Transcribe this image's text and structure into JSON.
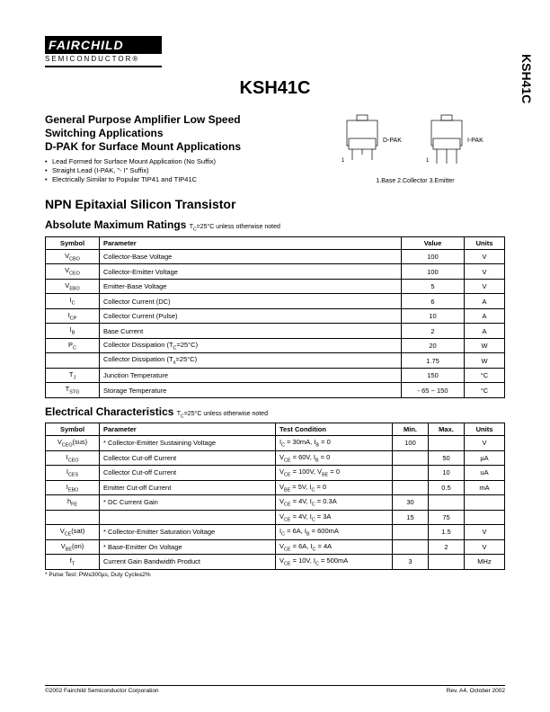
{
  "side_label": "KSH41C",
  "logo": {
    "top": "FAIRCHILD",
    "bottom": "SEMICONDUCTOR®"
  },
  "part_title": "KSH41C",
  "headline": [
    "General Purpose Amplifier Low Speed",
    "Switching Applications",
    "D-PAK for Surface Mount Applications"
  ],
  "bullets": [
    "Lead Formed for Surface Mount Application (No Suffix)",
    "Straight Lead (I-PAK, \"- I\" Suffix)",
    "Electrically Similar to Popular TIP41 and TIP41C"
  ],
  "pkg": {
    "left": "D-PAK",
    "right": "I-PAK",
    "pins": "1.Base    2.Collector    3.Emitter"
  },
  "npn_title": "NPN Epitaxial Silicon Transistor",
  "amr": {
    "title": "Absolute Maximum Ratings",
    "note": "T_C=25°C unless otherwise noted",
    "headers": [
      "Symbol",
      "Parameter",
      "Value",
      "Units"
    ],
    "rows": [
      [
        "V<sub>CBO</sub>",
        "Collector-Base Voltage",
        "100",
        "V"
      ],
      [
        "V<sub>CEO</sub>",
        "Collector-Emitter Voltage",
        "100",
        "V"
      ],
      [
        "V<sub>EBO</sub>",
        "Emitter-Base Voltage",
        "5",
        "V"
      ],
      [
        "I<sub>C</sub>",
        "Collector Current (DC)",
        "6",
        "A"
      ],
      [
        "I<sub>CP</sub>",
        "Collector Current (Pulse)",
        "10",
        "A"
      ],
      [
        "I<sub>B</sub>",
        "Base Current",
        "2",
        "A"
      ],
      [
        "P<sub>C</sub>",
        "Collector Dissipation (T<sub>C</sub>=25°C)",
        "20",
        "W"
      ],
      [
        "",
        "Collector Dissipation (T<sub>a</sub>=25°C)",
        "1.75",
        "W"
      ],
      [
        "T<sub>J</sub>",
        "Junction Temperature",
        "150",
        "°C"
      ],
      [
        "T<sub>STG</sub>",
        "Storage Temperature",
        "- 65 ~ 150",
        "°C"
      ]
    ]
  },
  "elec": {
    "title": "Electrical Characteristics",
    "note": "T_C=25°C unless otherwise noted",
    "headers": [
      "Symbol",
      "Parameter",
      "Test Condition",
      "Min.",
      "Max.",
      "Units"
    ],
    "rows": [
      [
        "V<sub>CEO</sub>(sus)",
        "* Collector-Emitter Sustaining Voltage",
        "I<sub>C</sub> = 30mA, I<sub>B</sub> = 0",
        "100",
        "",
        "V"
      ],
      [
        "I<sub>CEO</sub>",
        "Collector Cut-off Current",
        "V<sub>CE</sub> = 60V, I<sub>B</sub> = 0",
        "",
        "50",
        "µA"
      ],
      [
        "I<sub>CES</sub>",
        "Collector Cut-off Current",
        "V<sub>CE</sub> = 100V, V<sub>BE</sub> = 0",
        "",
        "10",
        "uA"
      ],
      [
        "I<sub>EBO</sub>",
        "Emitter Cut-off Current",
        "V<sub>BE</sub> = 5V, I<sub>C</sub> = 0",
        "",
        "0.5",
        "mA"
      ],
      [
        "h<sub>FE</sub>",
        "* DC Current Gain",
        "V<sub>CE</sub> = 4V, I<sub>C</sub> = 0.3A",
        "30",
        "",
        ""
      ],
      [
        "",
        "",
        "V<sub>CE</sub> = 4V, I<sub>C</sub> = 3A",
        "15",
        "75",
        ""
      ],
      [
        "V<sub>CE</sub>(sat)",
        "* Collector-Emitter Saturation Voltage",
        "I<sub>C</sub> = 6A, I<sub>B</sub> = 600mA",
        "",
        "1.5",
        "V"
      ],
      [
        "V<sub>BE</sub>(on)",
        "* Base-Emitter On Voltage",
        "V<sub>CE</sub> = 6A, I<sub>C</sub> = 4A",
        "",
        "2",
        "V"
      ],
      [
        "f<sub>T</sub>",
        "Current Gain Bandwidth Product",
        "V<sub>CE</sub> = 10V, I<sub>C</sub> = 500mA",
        "3",
        "",
        "MHz"
      ]
    ],
    "footnote": "* Pulse Test: PW≤300µs, Duty Cycle≤2%"
  },
  "footer": {
    "left": "©2002 Fairchild Semiconductor Corporation",
    "right": "Rev. A4, October 2002"
  }
}
